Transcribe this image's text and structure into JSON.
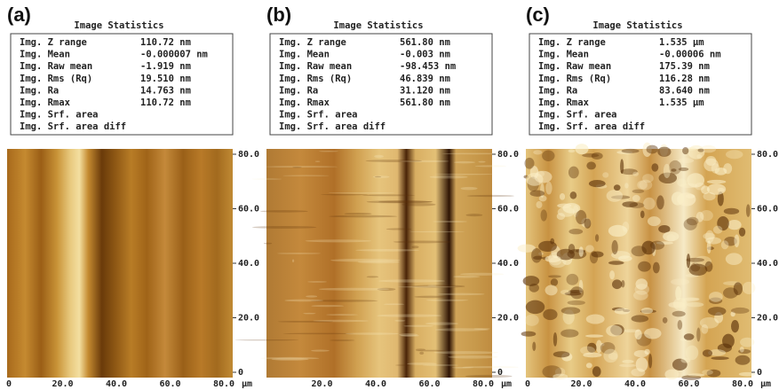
{
  "panels": [
    {
      "label": "(a)",
      "stats_title": "Image Statistics",
      "stats": [
        [
          "Img. Z range",
          "110.72 nm"
        ],
        [
          "Img. Mean",
          "-0.000007 nm"
        ],
        [
          "Img. Raw mean",
          "-1.919 nm"
        ],
        [
          "Img. Rms (Rq)",
          "19.510 nm"
        ],
        [
          "Img. Ra",
          "14.763 nm"
        ],
        [
          "Img. Rmax",
          "110.72 nm"
        ],
        [
          "Img. Srf. area"
        ],
        [
          "Img. Srf. area diff"
        ]
      ],
      "y_ticks": [
        "80.0",
        "60.0",
        "40.0",
        "20.0",
        "0"
      ],
      "x_ticks": [
        "0",
        "20.0",
        "40.0",
        "60.0",
        "80.0"
      ],
      "x_unit": "μm"
    },
    {
      "label": "(b)",
      "stats_title": "Image Statistics",
      "stats": [
        [
          "Img. Z range",
          "561.80 nm"
        ],
        [
          "Img. Mean",
          "-0.003 nm"
        ],
        [
          "Img. Raw mean",
          "-98.453 nm"
        ],
        [
          "Img. Rms (Rq)",
          "46.839 nm"
        ],
        [
          "Img. Ra",
          "31.120 nm"
        ],
        [
          "Img. Rmax",
          "561.80 nm"
        ],
        [
          "Img. Srf. area"
        ],
        [
          "Img. Srf. area diff"
        ]
      ],
      "y_ticks": [
        "80.0",
        "60.0",
        "40.0",
        "20.0",
        "0"
      ],
      "x_ticks": [
        "20.0",
        "40.0",
        "60.0",
        "80.0"
      ],
      "x_unit": "μm"
    },
    {
      "label": "(c)",
      "stats_title": "Image Statistics",
      "stats": [
        [
          "Img. Z range",
          "1.535 μm"
        ],
        [
          "Img. Mean",
          "-0.00006 nm"
        ],
        [
          "Img. Raw mean",
          "175.39 nm"
        ],
        [
          "Img. Rms (Rq)",
          "116.28 nm"
        ],
        [
          "Img. Ra",
          "83.640 nm"
        ],
        [
          "Img. Rmax",
          "1.535 μm"
        ],
        [
          "Img. Srf. area"
        ],
        [
          "Img. Srf. area diff"
        ]
      ],
      "y_ticks": [
        "80.0",
        "60.0",
        "40.0",
        "20.0",
        "0"
      ],
      "x_ticks": [
        "0",
        "20.0",
        "40.0",
        "60.0",
        "80.0"
      ],
      "x_unit": "μm"
    }
  ]
}
